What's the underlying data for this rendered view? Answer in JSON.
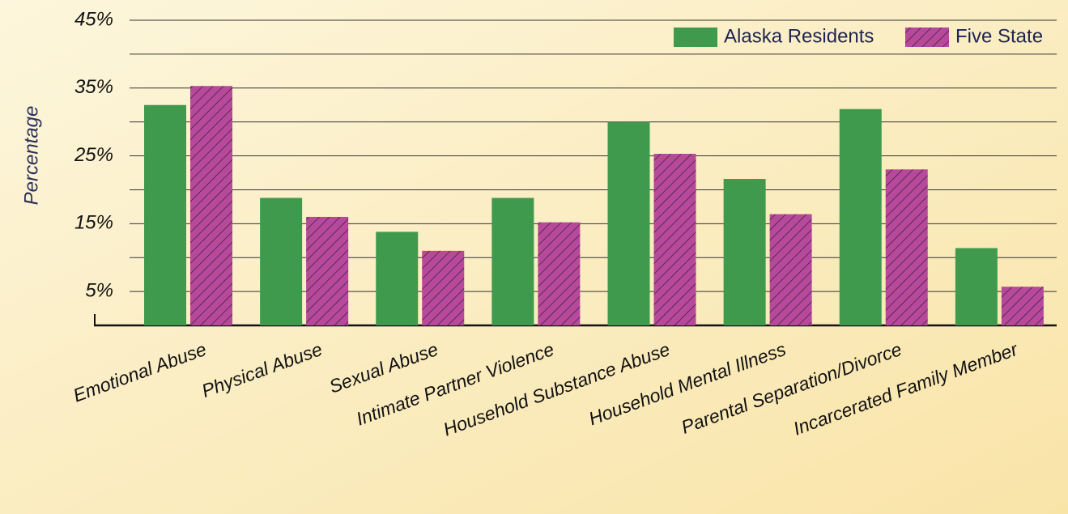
{
  "chart_data": {
    "type": "bar",
    "y_label": "Percentage",
    "categories": [
      "Emotional Abuse",
      "Physical Abuse",
      "Sexual Abuse",
      "Intimate Partner Violence",
      "Household Substance Abuse",
      "Household Mental Illness",
      "Parental Separation/Divorce",
      "Incarcerated Family Member"
    ],
    "series": [
      {
        "name": "Alaska Residents",
        "color": "#3f9a4e",
        "values": [
          32.5,
          18.8,
          13.8,
          18.8,
          30,
          21.6,
          31.9,
          11.4
        ]
      },
      {
        "name": "Five State",
        "color": "#b8489c",
        "hatch": true,
        "values": [
          35.3,
          16,
          11,
          15.2,
          25.3,
          16.4,
          23,
          5.7
        ]
      }
    ],
    "ylim": [
      0,
      45
    ],
    "yticks": [
      {
        "value": 5,
        "label": "5%"
      },
      {
        "value": 15,
        "label": "15%"
      },
      {
        "value": 25,
        "label": "25%"
      },
      {
        "value": 35,
        "label": "35%"
      },
      {
        "value": 45,
        "label": "45%"
      }
    ],
    "grid_lines": [
      10,
      20,
      30,
      40
    ],
    "grid": true,
    "legend": "top-right"
  }
}
